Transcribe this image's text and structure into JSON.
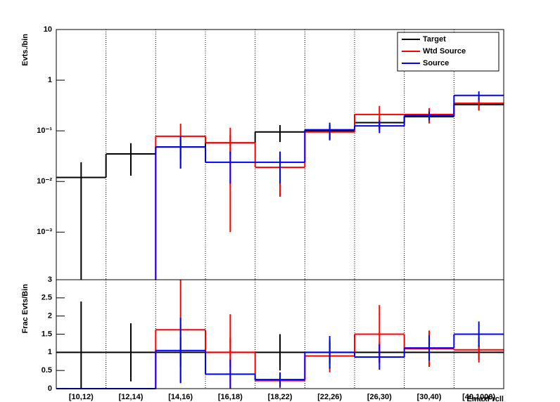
{
  "chart_data": [
    {
      "type": "step",
      "y_label": "Evts./bin",
      "log_y": true,
      "categories": [
        "[10,12)",
        "[12,14)",
        "[14,16)",
        "[16,18)",
        "[18,22)",
        "[22,26)",
        "[26,30)",
        "[30,40)",
        "[40,1000)"
      ],
      "ylim": [
        0.000115,
        10
      ],
      "yticks": [
        {
          "value": 0.001,
          "label": "10⁻³"
        },
        {
          "value": 0.01,
          "label": "10⁻²"
        },
        {
          "value": 0.1,
          "label": "10⁻¹"
        },
        1,
        10
      ],
      "grid": true,
      "legend": "upper right",
      "series": [
        {
          "name": "Target",
          "color": "#000000",
          "values": [
            0.012,
            0.035,
            0.048,
            0.058,
            0.095,
            0.1,
            0.145,
            0.19,
            0.33
          ],
          "errors": [
            0.012,
            0.022,
            0.02,
            0.025,
            0.035,
            0.03,
            0.04,
            0.04,
            0.07
          ]
        },
        {
          "name": "Wtd Source",
          "color": "#ff0000",
          "values": [
            null,
            null,
            0.078,
            0.058,
            0.019,
            0.095,
            0.21,
            0.21,
            0.35
          ],
          "errors": [
            null,
            null,
            0.06,
            0.057,
            0.014,
            0.03,
            0.1,
            0.07,
            0.1
          ]
        },
        {
          "name": "Source",
          "color": "#0000ff",
          "values": [
            null,
            null,
            0.048,
            0.024,
            0.024,
            0.105,
            0.125,
            0.2,
            0.5
          ],
          "errors": [
            null,
            null,
            0.03,
            0.015,
            0.015,
            0.04,
            0.035,
            0.04,
            0.1
          ]
        }
      ]
    },
    {
      "type": "step",
      "y_label": "Frac Evts/Bin",
      "x_label": "EmaxFrcll",
      "categories": [
        "[10,12)",
        "[12,14)",
        "[14,16)",
        "[16,18)",
        "[18,22)",
        "[22,26)",
        "[26,30)",
        "[30,40)",
        "[40,1000)"
      ],
      "ylim": [
        0,
        3
      ],
      "yticks": [
        0,
        0.5,
        1,
        1.5,
        2,
        2.5,
        3
      ],
      "grid": true,
      "series": [
        {
          "name": "Target",
          "color": "#000000",
          "values": [
            1,
            1,
            1,
            1,
            1,
            1,
            1,
            1,
            1
          ],
          "errors": [
            1.4,
            0.8,
            0.4,
            0.4,
            0.5,
            0.3,
            0.28,
            0.2,
            0.2
          ]
        },
        {
          "name": "Wtd Source",
          "color": "#ff0000",
          "values": [
            0,
            0,
            1.62,
            1.0,
            0.22,
            0.9,
            1.5,
            1.1,
            1.07
          ],
          "errors": [
            0,
            0,
            1.45,
            1.05,
            0.2,
            0.45,
            0.8,
            0.5,
            0.35
          ]
        },
        {
          "name": "Source",
          "color": "#0000ff",
          "values": [
            0,
            0,
            1.05,
            0.4,
            0.25,
            1.0,
            0.87,
            1.12,
            1.5
          ],
          "errors": [
            0,
            0,
            0.9,
            0.4,
            0.2,
            0.45,
            0.35,
            0.35,
            0.35
          ]
        }
      ]
    }
  ]
}
